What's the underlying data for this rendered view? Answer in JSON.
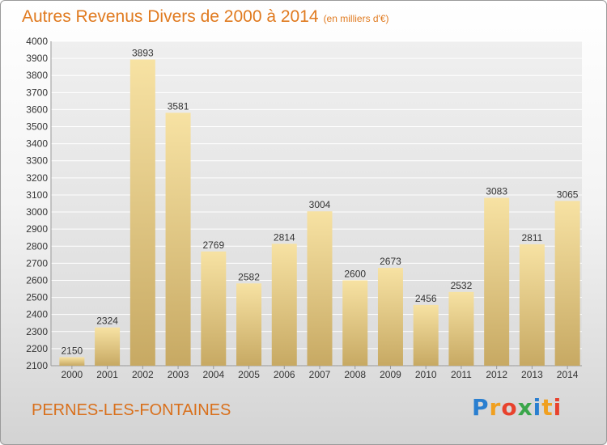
{
  "title": "Autres Revenus Divers de 2000 à 2014",
  "subtitle": "(en milliers d'€)",
  "town": "PERNES-LES-FONTAINES",
  "logo": "Proxiti",
  "colors": {
    "accent": "#e07a1f",
    "bar_top": "#f7e2a3",
    "bar_bottom": "#c9ac6a"
  },
  "chart_data": {
    "type": "bar",
    "categories": [
      "2000",
      "2001",
      "2002",
      "2003",
      "2004",
      "2005",
      "2006",
      "2007",
      "2008",
      "2009",
      "2010",
      "2011",
      "2012",
      "2013",
      "2014"
    ],
    "values": [
      2150,
      2324,
      3893,
      3581,
      2769,
      2582,
      2814,
      3004,
      2600,
      2673,
      2456,
      2532,
      3083,
      2811,
      3065
    ],
    "ylim": [
      2100,
      4000
    ],
    "yticks": [
      2100,
      2200,
      2300,
      2400,
      2500,
      2600,
      2700,
      2800,
      2900,
      3000,
      3100,
      3200,
      3300,
      3400,
      3500,
      3600,
      3700,
      3800,
      3900,
      4000
    ],
    "grid": true
  }
}
